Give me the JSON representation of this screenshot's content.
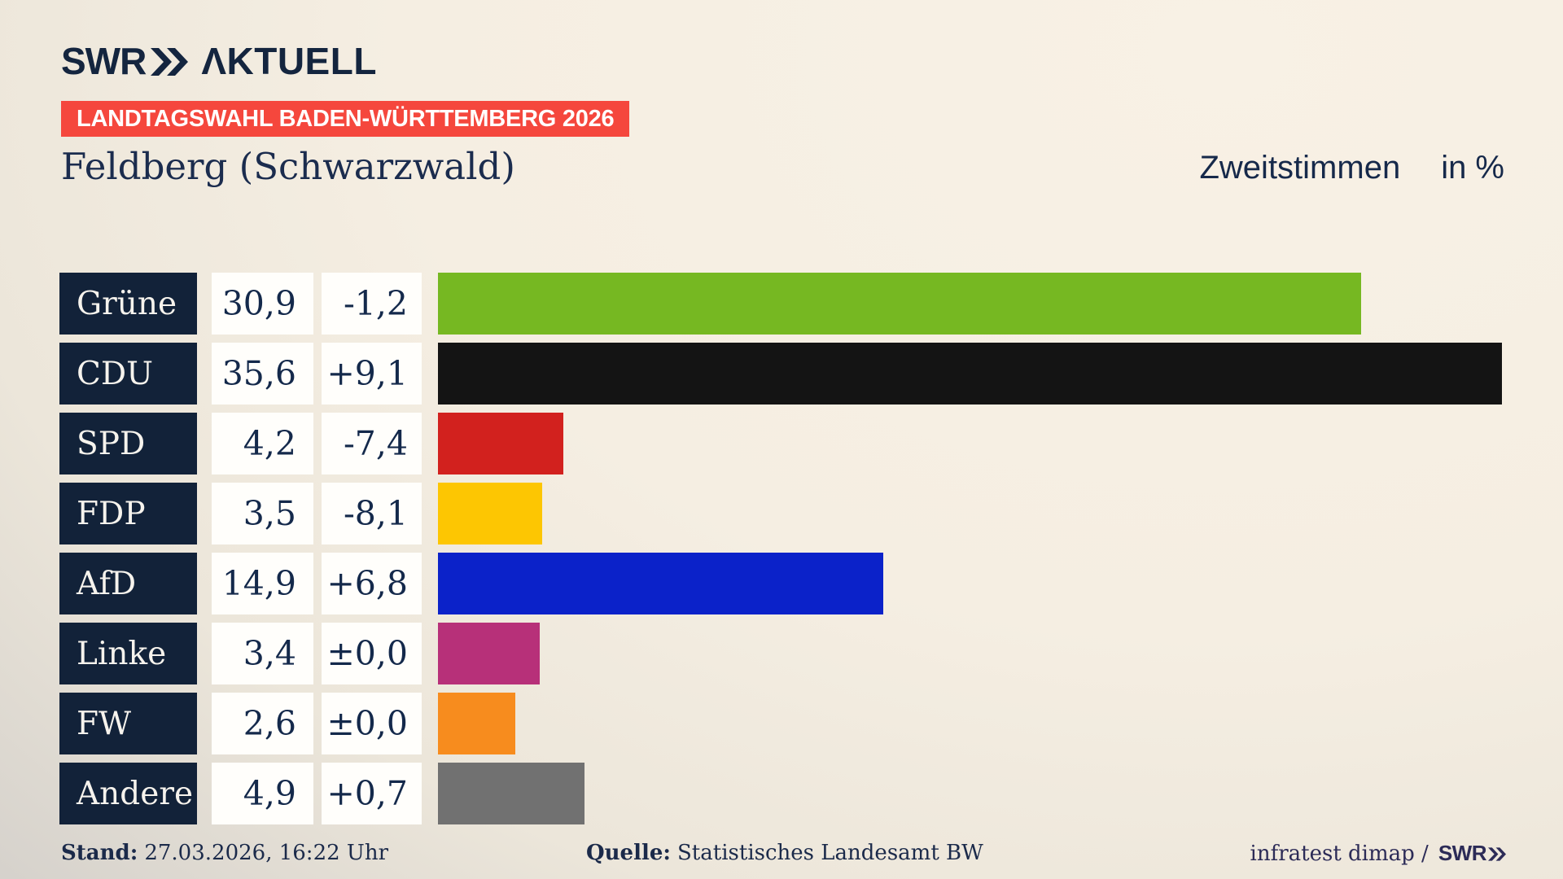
{
  "brand": {
    "logo_text": "SWR",
    "logo_suffix": "ΛKTUELL"
  },
  "banner": {
    "label": "LANDTAGSWAHL BADEN-WÜRTTEMBERG 2026",
    "bg": "#f5473d"
  },
  "header": {
    "title": "Feldberg (Schwarzwald)",
    "measure_label": "Zweitstimmen",
    "unit_label": "in %"
  },
  "chart_data": {
    "type": "bar",
    "orientation": "horizontal",
    "title": "Feldberg (Schwarzwald)",
    "value_label": "Zweitstimmen",
    "unit": "in %",
    "xlim": [
      0,
      35.6
    ],
    "grid": false,
    "legend": false,
    "categories": [
      "Grüne",
      "CDU",
      "SPD",
      "FDP",
      "AfD",
      "Linke",
      "FW",
      "Andere"
    ],
    "values": [
      30.9,
      35.6,
      4.2,
      3.5,
      14.9,
      3.4,
      2.6,
      4.9
    ],
    "changes": [
      -1.2,
      9.1,
      -7.4,
      -8.1,
      6.8,
      0.0,
      0.0,
      0.7
    ],
    "value_labels": [
      "30,9",
      "35,6",
      "4,2",
      "3,5",
      "14,9",
      "3,4",
      "2,6",
      "4,9"
    ],
    "change_labels": [
      "-1,2",
      "+9,1",
      "-7,4",
      "-8,1",
      "+6,8",
      "±0,0",
      "±0,0",
      "+0,7"
    ],
    "bar_colors": [
      "#76b822",
      "#141414",
      "#d2211e",
      "#fdc602",
      "#0b22c9",
      "#b73079",
      "#f78c1e",
      "#717171"
    ],
    "label_box_color": "#122239",
    "value_box_color": "#fffefb"
  },
  "footer": {
    "stand_label": "Stand:",
    "stand_value": "27.03.2026, 16:22 Uhr",
    "quelle_label": "Quelle:",
    "quelle_value": "Statistisches Landesamt BW",
    "credit_text": "infratest dimap /",
    "credit_logo": "SWR"
  }
}
